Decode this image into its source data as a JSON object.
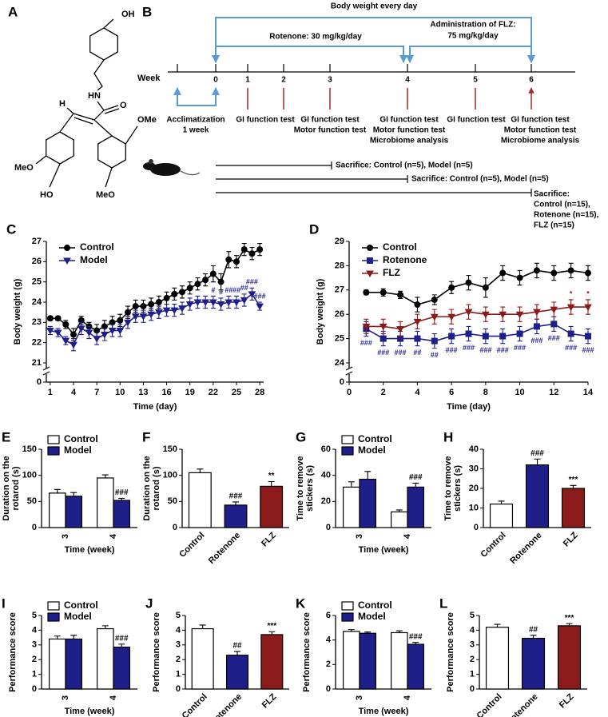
{
  "panel_a": {
    "letter": "A",
    "labels": [
      "OH",
      "HN",
      "O",
      "H",
      "OMe",
      "MeO",
      "HO",
      "MeO"
    ]
  },
  "panel_b": {
    "letter": "B",
    "body_weight": "Body weight every day",
    "rotenone": "Rotenone: 30 mg/kg/day",
    "flz": [
      "Administration of FLZ:",
      "75 mg/kg/day"
    ],
    "axis_label": "Week",
    "weeks": [
      "0",
      "1",
      "2",
      "3",
      "4",
      "5",
      "6"
    ],
    "events": [
      [
        "Acclimatization",
        "1 week"
      ],
      [
        "GI function test"
      ],
      [
        "GI function test",
        "Motor function test"
      ],
      [
        "GI function test",
        "Motor function test",
        "Microbiome analysis"
      ],
      [
        "GI function test"
      ],
      [
        "GI function test",
        "Motor function test",
        "Microbiome analysis"
      ]
    ],
    "sacrifices": [
      [
        "Sacrifice: Control (n=5), Model (n=5)"
      ],
      [
        "Sacrifice: Control (n=5), Model (n=5)"
      ],
      [
        "Sacrifice:",
        "Control (n=15),",
        "Rotenone (n=15),",
        "FLZ (n=15)"
      ]
    ]
  },
  "chart_data": [
    {
      "type": "line",
      "panel": "C",
      "ylabel": "Body weight (g)",
      "xlabel": "Time (day)",
      "x": [
        1,
        2,
        3,
        4,
        5,
        6,
        7,
        8,
        9,
        10,
        11,
        12,
        13,
        14,
        15,
        16,
        17,
        18,
        19,
        20,
        21,
        22,
        23,
        24,
        25,
        26,
        27,
        28
      ],
      "xlim": [
        0.5,
        28.5
      ],
      "xticks": [
        1,
        4,
        7,
        10,
        13,
        16,
        19,
        22,
        25,
        28
      ],
      "ylim": [
        0,
        27
      ],
      "yticks": [
        0,
        21,
        22,
        23,
        24,
        25,
        26,
        27
      ],
      "axis_break": true,
      "legend": "upper left",
      "series": [
        {
          "name": "Control",
          "color": "#000000",
          "marker": "circle",
          "values": [
            23.2,
            23.2,
            22.9,
            22.4,
            23.1,
            22.8,
            22.6,
            22.8,
            23.0,
            23.1,
            23.5,
            23.8,
            23.8,
            23.9,
            24.0,
            24.2,
            24.4,
            24.5,
            24.7,
            24.9,
            25.1,
            25.4,
            25.0,
            26.1,
            26.0,
            26.6,
            26.4,
            26.6
          ],
          "errors": [
            0.1,
            0.1,
            0.2,
            0.3,
            0.2,
            0.2,
            0.3,
            0.3,
            0.3,
            0.3,
            0.3,
            0.3,
            0.3,
            0.3,
            0.3,
            0.3,
            0.3,
            0.3,
            0.3,
            0.3,
            0.3,
            0.4,
            0.4,
            0.4,
            0.3,
            0.3,
            0.3,
            0.3
          ]
        },
        {
          "name": "Model",
          "color": "#1f1f8a",
          "marker": "triangle",
          "values": [
            22.6,
            22.5,
            22.1,
            21.9,
            22.7,
            22.5,
            22.2,
            22.4,
            22.6,
            22.6,
            23.0,
            23.3,
            23.3,
            23.4,
            23.5,
            23.6,
            23.6,
            23.7,
            23.9,
            24.0,
            24.0,
            24.0,
            23.9,
            24.0,
            24.0,
            24.1,
            24.4,
            23.8
          ],
          "errors": [
            0.2,
            0.2,
            0.2,
            0.3,
            0.3,
            0.3,
            0.3,
            0.3,
            0.3,
            0.3,
            0.3,
            0.3,
            0.3,
            0.3,
            0.3,
            0.3,
            0.3,
            0.3,
            0.3,
            0.3,
            0.3,
            0.3,
            0.3,
            0.3,
            0.3,
            0.3,
            0.3,
            0.2
          ],
          "sig": [
            null,
            null,
            null,
            null,
            null,
            null,
            null,
            null,
            null,
            null,
            null,
            null,
            null,
            null,
            null,
            null,
            null,
            null,
            null,
            null,
            null,
            "#",
            "#",
            "##",
            "##",
            "##",
            "###",
            "###"
          ],
          "sig_side": "above"
        }
      ]
    },
    {
      "type": "line",
      "panel": "D",
      "ylabel": "Body weight (g)",
      "xlabel": "Time (day)",
      "x": [
        1,
        2,
        3,
        4,
        5,
        6,
        7,
        8,
        9,
        10,
        11,
        12,
        13,
        14
      ],
      "xlim": [
        0,
        14
      ],
      "xticks": [
        0,
        2,
        4,
        6,
        8,
        10,
        12,
        14
      ],
      "ylim": [
        0,
        29
      ],
      "yticks": [
        0,
        24,
        25,
        26,
        27,
        28,
        29
      ],
      "axis_break": true,
      "legend": "upper left",
      "series": [
        {
          "name": "Control",
          "color": "#000000",
          "marker": "circle",
          "values": [
            26.9,
            26.9,
            26.8,
            26.4,
            26.6,
            27.1,
            27.3,
            27.1,
            27.7,
            27.5,
            27.8,
            27.7,
            27.8,
            27.7
          ],
          "errors": [
            0.1,
            0.15,
            0.15,
            0.3,
            0.2,
            0.25,
            0.3,
            0.4,
            0.3,
            0.3,
            0.3,
            0.3,
            0.3,
            0.3
          ]
        },
        {
          "name": "Rotenone",
          "color": "#1f1f8a",
          "marker": "square",
          "values": [
            25.4,
            25.0,
            25.0,
            25.0,
            24.9,
            25.1,
            25.2,
            25.1,
            25.1,
            25.2,
            25.5,
            25.6,
            25.2,
            25.1
          ],
          "errors": [
            0.3,
            0.3,
            0.3,
            0.3,
            0.3,
            0.3,
            0.3,
            0.3,
            0.3,
            0.3,
            0.3,
            0.3,
            0.3,
            0.3
          ],
          "sig": [
            "###",
            "###",
            "###",
            "##",
            "##",
            "###",
            "###",
            "###",
            "###",
            "###",
            "###",
            "###",
            "###",
            "###"
          ],
          "sig_side": "below"
        },
        {
          "name": "FLZ",
          "color": "#8b1a1a",
          "marker": "triangle",
          "values": [
            25.5,
            25.5,
            25.4,
            25.7,
            25.9,
            25.9,
            26.1,
            26.0,
            26.0,
            26.0,
            26.1,
            26.2,
            26.3,
            26.3
          ],
          "errors": [
            0.3,
            0.3,
            0.3,
            0.3,
            0.3,
            0.3,
            0.3,
            0.3,
            0.3,
            0.3,
            0.3,
            0.3,
            0.3,
            0.3
          ],
          "sig": [
            null,
            null,
            null,
            null,
            null,
            null,
            null,
            null,
            null,
            null,
            null,
            null,
            "*",
            "*"
          ],
          "sig_side": "above"
        }
      ]
    },
    {
      "type": "bar",
      "panel": "E",
      "ylabel": [
        "Duration on the",
        "rotarod (s)"
      ],
      "xlabel": "Time (week)",
      "categories": [
        "3",
        "4"
      ],
      "ylim": [
        0,
        150
      ],
      "yticks": [
        0,
        50,
        100,
        150
      ],
      "legend": "upper left",
      "series": [
        {
          "name": "Control",
          "color": "#ffffff",
          "values": [
            66,
            95
          ],
          "errors": [
            7,
            6
          ]
        },
        {
          "name": "Model",
          "color": "#1f1f8a",
          "values": [
            60,
            52
          ],
          "errors": [
            7,
            4
          ],
          "sig": [
            null,
            "###"
          ]
        }
      ]
    },
    {
      "type": "bar",
      "panel": "F",
      "ylabel": [
        "Duration on the",
        "rotarod (s)"
      ],
      "categories": [
        "Control",
        "Rotenone",
        "FLZ"
      ],
      "values": [
        105,
        43,
        79
      ],
      "errors": [
        7,
        6,
        9
      ],
      "colors": [
        "#ffffff",
        "#1f1f8a",
        "#8b1a1a"
      ],
      "sig": [
        null,
        "###",
        "**"
      ],
      "ylim": [
        0,
        150
      ],
      "yticks": [
        0,
        50,
        100,
        150
      ]
    },
    {
      "type": "bar",
      "panel": "G",
      "ylabel": [
        "Time to remove",
        "stickers (s)"
      ],
      "xlabel": "Time (week)",
      "categories": [
        "3",
        "4"
      ],
      "ylim": [
        0,
        60
      ],
      "yticks": [
        0,
        20,
        40,
        60
      ],
      "legend": "upper left",
      "series": [
        {
          "name": "Control",
          "color": "#ffffff",
          "values": [
            31,
            12
          ],
          "errors": [
            4,
            1.5
          ]
        },
        {
          "name": "Model",
          "color": "#1f1f8a",
          "values": [
            37,
            31
          ],
          "errors": [
            6,
            3
          ],
          "sig": [
            null,
            "###"
          ]
        }
      ]
    },
    {
      "type": "bar",
      "panel": "H",
      "ylabel": [
        "Time to remove",
        "stickers (s)"
      ],
      "categories": [
        "Control",
        "Rotenone",
        "FLZ"
      ],
      "values": [
        12,
        32,
        20
      ],
      "errors": [
        1.5,
        3,
        1.5
      ],
      "colors": [
        "#ffffff",
        "#1f1f8a",
        "#8b1a1a"
      ],
      "sig": [
        null,
        "###",
        "***"
      ],
      "ylim": [
        0,
        40
      ],
      "yticks": [
        0,
        10,
        20,
        30,
        40
      ]
    },
    {
      "type": "bar",
      "panel": "I",
      "ylabel": "Performance score",
      "xlabel": "Time (week)",
      "categories": [
        "3",
        "4"
      ],
      "ylim": [
        0,
        5
      ],
      "yticks": [
        0,
        1,
        2,
        3,
        4,
        5
      ],
      "legend": "upper left",
      "series": [
        {
          "name": "Control",
          "color": "#ffffff",
          "values": [
            3.4,
            4.1
          ],
          "errors": [
            0.2,
            0.2
          ]
        },
        {
          "name": "Model",
          "color": "#1f1f8a",
          "values": [
            3.4,
            2.85
          ],
          "errors": [
            0.25,
            0.2
          ],
          "sig": [
            null,
            "###"
          ]
        }
      ]
    },
    {
      "type": "bar",
      "panel": "J",
      "ylabel": "Performance score",
      "categories": [
        "Control",
        "Rotenone",
        "FLZ"
      ],
      "values": [
        4.1,
        2.3,
        3.7
      ],
      "errors": [
        0.25,
        0.25,
        0.2
      ],
      "colors": [
        "#ffffff",
        "#1f1f8a",
        "#8b1a1a"
      ],
      "sig": [
        null,
        "##",
        "***"
      ],
      "ylim": [
        0,
        5
      ],
      "yticks": [
        0,
        1,
        2,
        3,
        4,
        5
      ]
    },
    {
      "type": "bar",
      "panel": "K",
      "ylabel": "Performance score",
      "xlabel": "Time (week)",
      "categories": [
        "3",
        "4"
      ],
      "ylim": [
        0,
        6
      ],
      "yticks": [
        0,
        2,
        4,
        6
      ],
      "legend": "upper left",
      "series": [
        {
          "name": "Control",
          "color": "#ffffff",
          "values": [
            4.7,
            4.6
          ],
          "errors": [
            0.15,
            0.15
          ]
        },
        {
          "name": "Model",
          "color": "#1f1f8a",
          "values": [
            4.55,
            3.65
          ],
          "errors": [
            0.1,
            0.15
          ],
          "sig": [
            null,
            "###"
          ]
        }
      ]
    },
    {
      "type": "bar",
      "panel": "L",
      "ylabel": "Performance score",
      "categories": [
        "Control",
        "Rotenone",
        "FLZ"
      ],
      "values": [
        4.2,
        3.45,
        4.3
      ],
      "errors": [
        0.2,
        0.2,
        0.15
      ],
      "colors": [
        "#ffffff",
        "#1f1f8a",
        "#8b1a1a"
      ],
      "sig": [
        null,
        "##",
        "***"
      ],
      "ylim": [
        0,
        5
      ],
      "yticks": [
        0,
        1,
        2,
        3,
        4,
        5
      ]
    }
  ]
}
